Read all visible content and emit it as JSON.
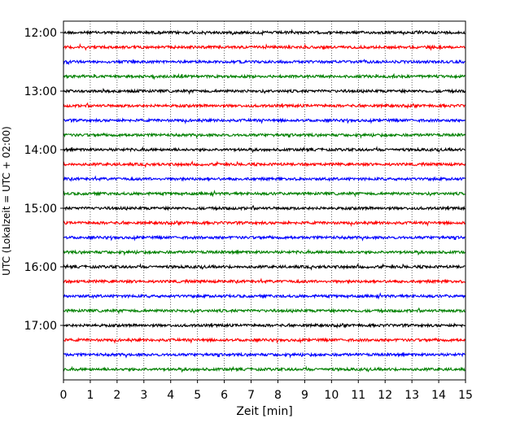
{
  "chart_data": {
    "type": "line",
    "title": "",
    "xlabel": "Zeit  [min]",
    "ylabel": "UTC (Lokalzeit = UTC + 02:00)",
    "xlim": [
      0,
      15
    ],
    "x_ticks": [
      "0",
      "1",
      "2",
      "3",
      "4",
      "5",
      "6",
      "7",
      "8",
      "9",
      "10",
      "11",
      "12",
      "13",
      "14",
      "15"
    ],
    "y_ticks": [
      "12:00",
      "13:00",
      "14:00",
      "15:00",
      "16:00",
      "17:00"
    ],
    "grid": "vertical-dotted",
    "trace_start": "12:00",
    "trace_interval_min": 15,
    "trace_count": 24,
    "trace_colors": [
      "#000000",
      "#ff0000",
      "#0000ff",
      "#008000"
    ]
  }
}
